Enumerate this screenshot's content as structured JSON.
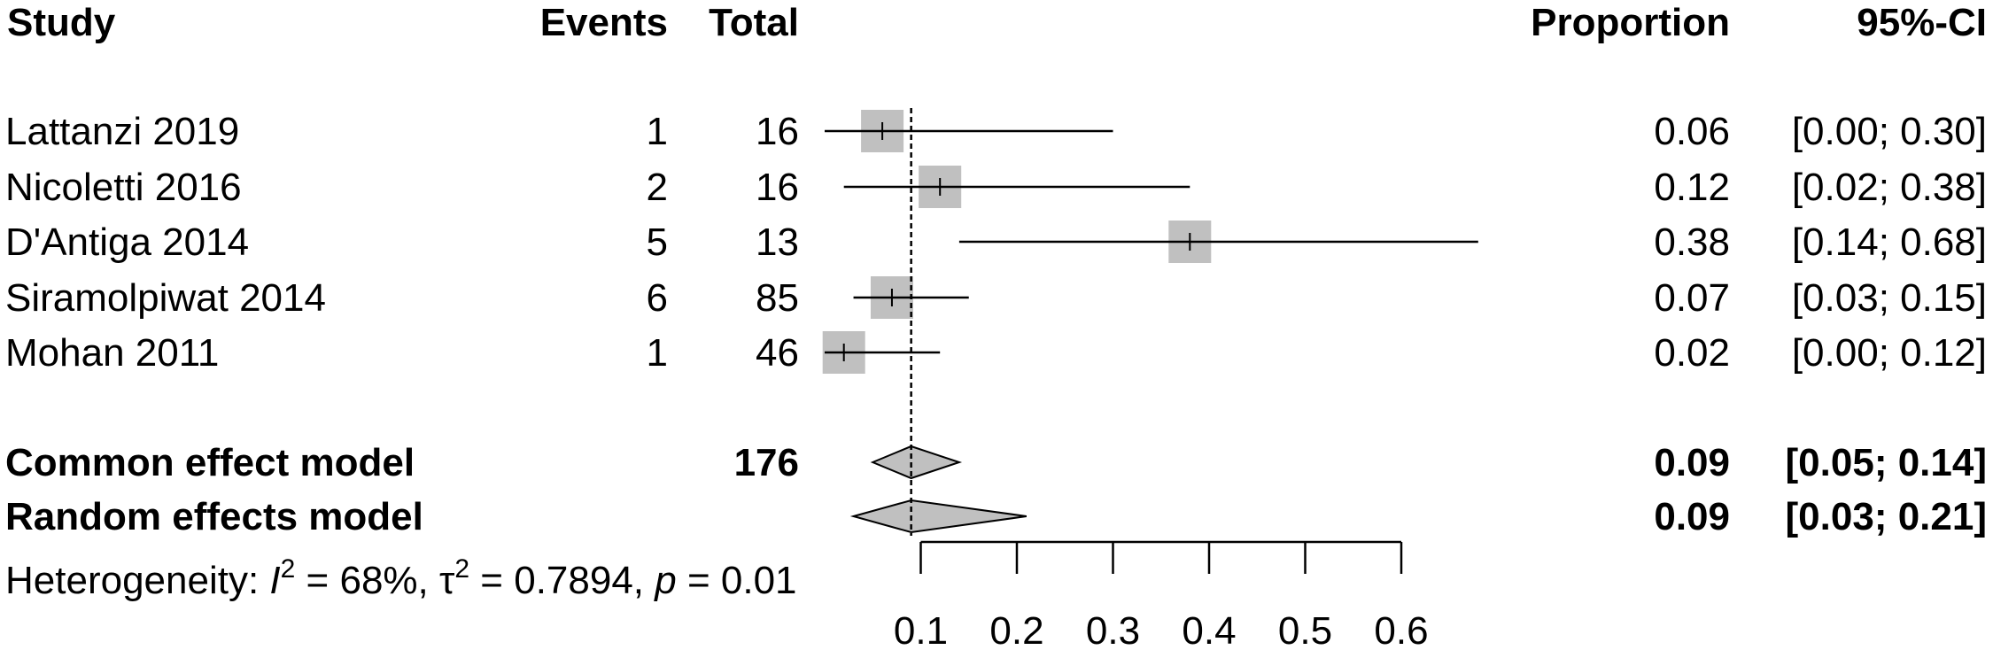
{
  "chart_data": {
    "type": "forest",
    "headers": {
      "study": "Study",
      "events": "Events",
      "total": "Total",
      "proportion": "Proportion",
      "ci": "95%-CI"
    },
    "studies": [
      {
        "name": "Lattanzi 2019",
        "events": "1",
        "total": "16",
        "proportion": 0.06,
        "proportion_text": "0.06",
        "lower": 0.0,
        "upper": 0.3,
        "ci_text": "[0.00; 0.30]",
        "weight": 1.0
      },
      {
        "name": "Nicoletti 2016",
        "events": "2",
        "total": "16",
        "proportion": 0.12,
        "proportion_text": "0.12",
        "lower": 0.02,
        "upper": 0.38,
        "ci_text": "[0.02; 0.38]",
        "weight": 1.0
      },
      {
        "name": "D'Antiga 2014",
        "events": "5",
        "total": "13",
        "proportion": 0.38,
        "proportion_text": "0.38",
        "lower": 0.14,
        "upper": 0.68,
        "ci_text": "[0.14; 0.68]",
        "weight": 1.0
      },
      {
        "name": "Siramolpiwat 2014",
        "events": "6",
        "total": "85",
        "proportion": 0.07,
        "proportion_text": "0.07",
        "lower": 0.03,
        "upper": 0.15,
        "ci_text": "[0.03; 0.15]",
        "weight": 1.0
      },
      {
        "name": "Mohan 2011",
        "events": "1",
        "total": "46",
        "proportion": 0.02,
        "proportion_text": "0.02",
        "lower": 0.0,
        "upper": 0.12,
        "ci_text": "[0.00; 0.12]",
        "weight": 1.0
      }
    ],
    "models": [
      {
        "name": "Common effect model",
        "total": "176",
        "estimate": 0.09,
        "estimate_text": "0.09",
        "lower": 0.05,
        "upper": 0.14,
        "ci_text": "[0.05; 0.14]"
      },
      {
        "name": "Random effects model",
        "total": "",
        "estimate": 0.09,
        "estimate_text": "0.09",
        "lower": 0.03,
        "upper": 0.21,
        "ci_text": "[0.03; 0.21]"
      }
    ],
    "reference_line": 0.09,
    "heterogeneity": {
      "prefix": "Heterogeneity: ",
      "i2_symbol": "I",
      "i2_value": " = 68%, ",
      "tau2_symbol": "τ",
      "tau2_value": " = 0.7894, ",
      "p_symbol": "p",
      "p_value": " = 0.01"
    },
    "x_axis": {
      "ticks": [
        0.1,
        0.2,
        0.3,
        0.4,
        0.5,
        0.6
      ],
      "tick_labels": [
        "0.1",
        "0.2",
        "0.3",
        "0.4",
        "0.5",
        "0.6"
      ]
    },
    "colors": {
      "square": "#c0c0c0",
      "diamond": "#c0c0c0",
      "line": "#000000"
    }
  }
}
